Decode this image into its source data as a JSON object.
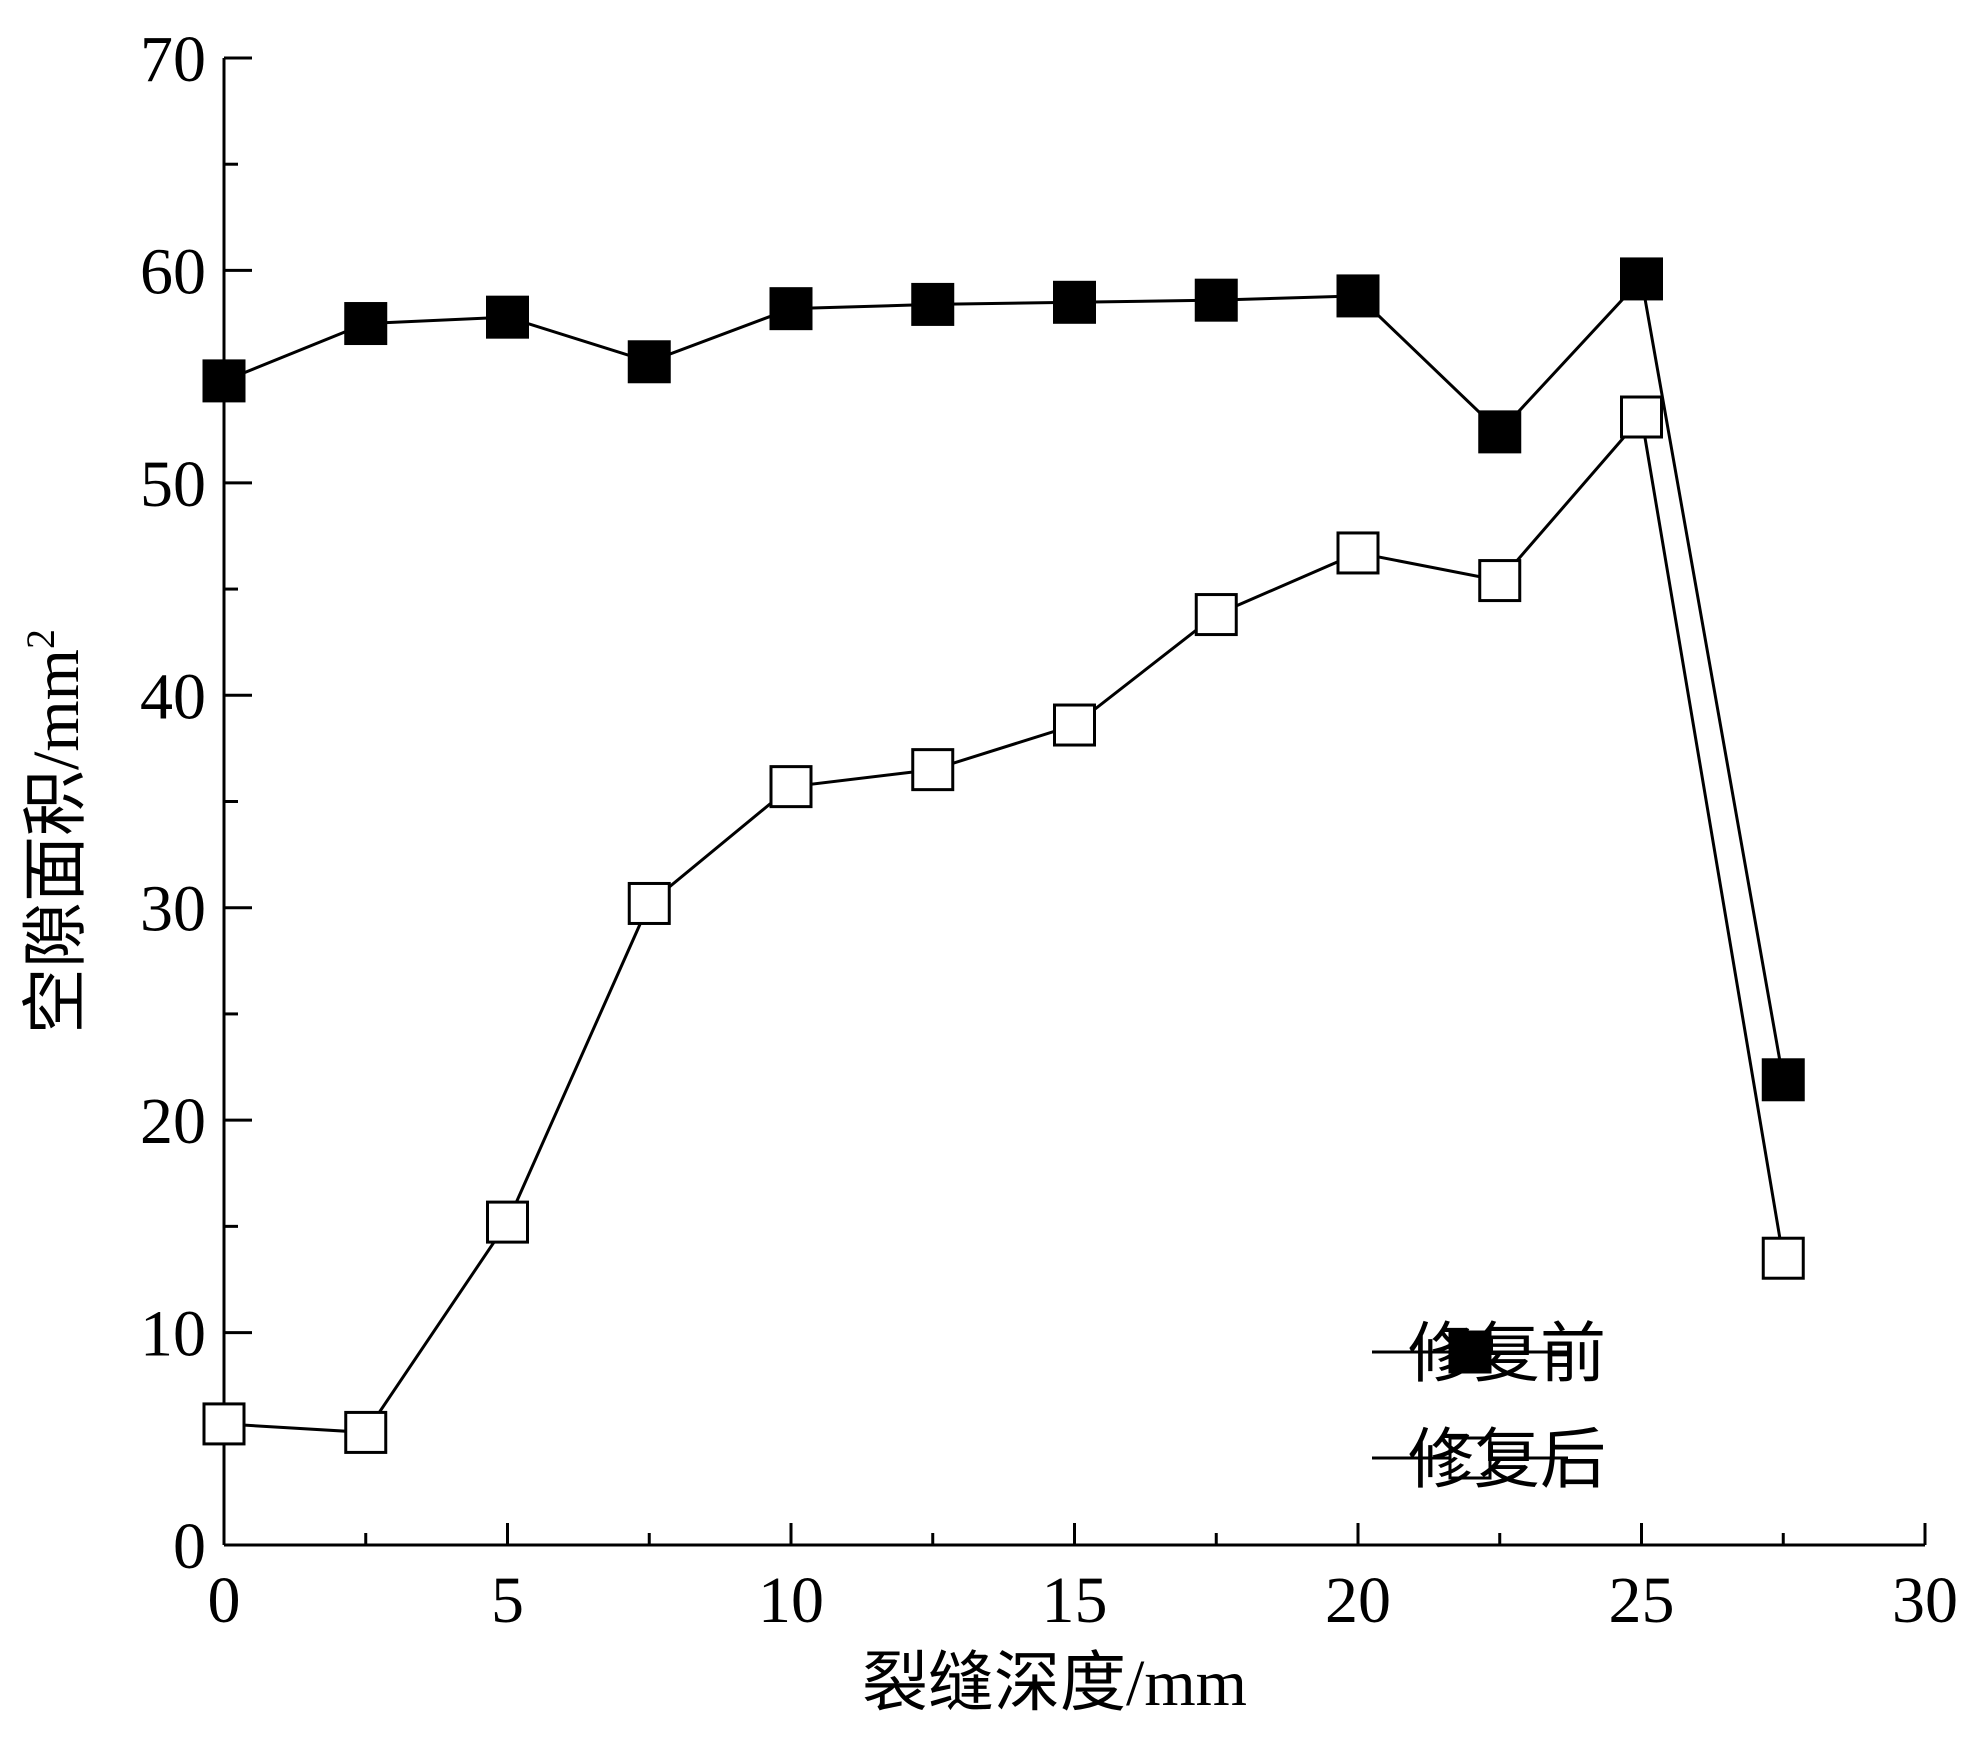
{
  "chart_data": {
    "type": "line",
    "xlabel": "裂缝深度/mm",
    "ylabel": "空隙面积/mm",
    "ylabel_superscript": "2",
    "xlim": [
      0,
      30
    ],
    "ylim": [
      0,
      70
    ],
    "xticks": [
      "0",
      "5",
      "10",
      "15",
      "20",
      "25",
      "30"
    ],
    "yticks": [
      "0",
      "10",
      "20",
      "30",
      "40",
      "50",
      "60",
      "70"
    ],
    "grid": false,
    "legend_position": "bottom-right",
    "x": [
      0,
      2.5,
      5,
      7.5,
      10,
      12.5,
      15,
      17.5,
      20,
      22.5,
      25,
      27.5
    ],
    "series": [
      {
        "name": "修复前",
        "marker": "filled-square",
        "color": "#000000",
        "values": [
          54.8,
          57.5,
          57.8,
          55.7,
          58.2,
          58.4,
          58.5,
          58.6,
          58.8,
          52.4,
          59.6,
          21.9
        ]
      },
      {
        "name": "修复后",
        "marker": "open-square",
        "color": "#000000",
        "values": [
          5.7,
          5.3,
          15.2,
          30.2,
          35.7,
          36.5,
          38.6,
          43.8,
          46.7,
          45.4,
          53.1,
          13.5
        ]
      }
    ]
  }
}
